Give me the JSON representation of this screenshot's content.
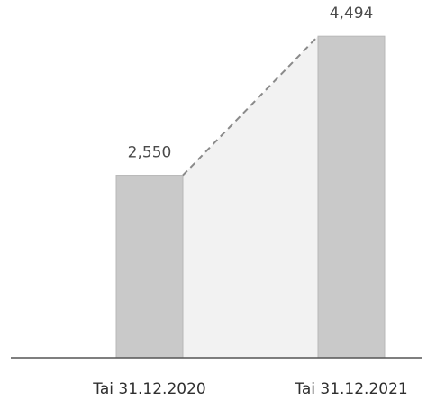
{
  "chart_data": {
    "type": "bar",
    "title": "",
    "xlabel": "",
    "ylabel": "",
    "categories": [
      "Tai 31.12.2020",
      "Tai 31.12.2021"
    ],
    "values": [
      2550,
      4494
    ],
    "value_labels": [
      "2,550",
      "4,494"
    ],
    "ylim": [
      0,
      5000
    ],
    "grid": false,
    "legend": "none",
    "connector": "dashed line between bar tops",
    "colors": {
      "bar": "#c9c9c9",
      "bar_edge": "#b8b8b8",
      "axis": "#555555",
      "connector": "#8a8a8a",
      "shade": "#f2f2f2"
    }
  }
}
